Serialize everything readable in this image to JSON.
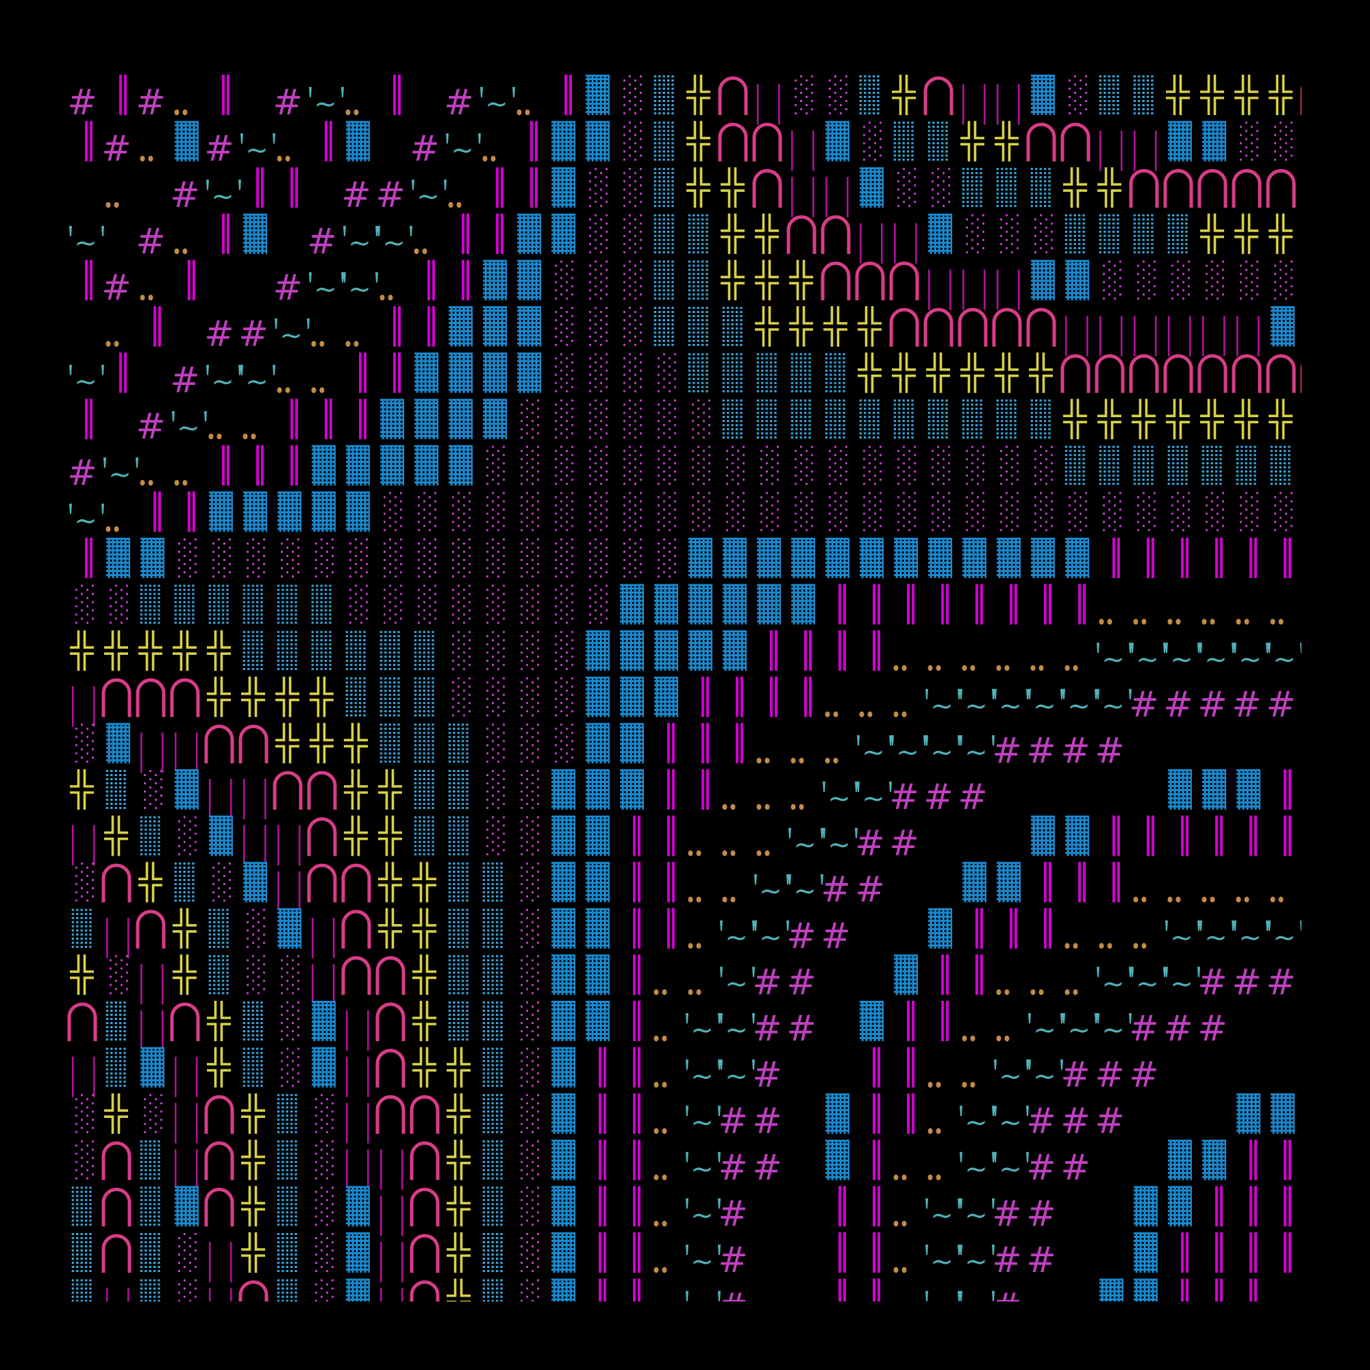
{
  "background": "#000000",
  "glyphs": {
    "H": {
      "name": "hash",
      "char": "#",
      "color": "#c040c0"
    },
    "B": {
      "name": "double-bar",
      "color": "#d000d0"
    },
    "T": {
      "name": "quote-tilde",
      "char": "~",
      "color": "#4fb2ba"
    },
    "D": {
      "name": "two-dots",
      "color": "#c48c42"
    },
    "S": {
      "name": "solid-blue-block",
      "color": "#1a8ad0"
    },
    "M": {
      "name": "magenta-dot-block",
      "color": "#c23ec8"
    },
    "C": {
      "name": "cyan-dot-block",
      "color": "#35a6dc"
    },
    "Y": {
      "name": "double-cross",
      "color": "#d8d044"
    },
    "A": {
      "name": "arch",
      "color": "#d83c88"
    },
    "L": {
      "name": "thin-double-line",
      "color": "#b0109a"
    }
  },
  "grid": [
    "HBHDB.HTDB.HTDBSMCYALMMCYALLSMCCYYYYA",
    "BHDSHTDBS.HTDBSSMCYAALSMCCYYAALLSSMMM",
    ".D.HTBB.HHTDBBSMMCYYALLSMMCCCYYAAAAAL",
    "T.HDBS.HTTDBBSSMMCCYYAALLSMMMCCCCYYYY",
    "BHDB..HTTDBBSSMMMCCYYYAAALLLSSMMMMMMC",
    ".DB.HHTDDBBSSSMMMCCCYYYYAAAAALLLLLLSS",
    "TB.HTTDDBBSSSSMMMMCCCCCYYYYYYAAAAAAAA",
    "B.HTDDBBBSSSSMMMMMMCCCCCCCCCCYYYYYYYY",
    "HTDDBBBSSSSSMMMMMMMMMMMMMMMMMCCCCCCCC",
    "TDBBSSSSSMMMMMMMMMMMMMMMMMMMMMMMMMMMM",
    "BSSMMMMMMMMMMMMMMMSSSSSSSSSSSSBBBBBB.",
    "MMCCCCCCMMMMMMMMSSSSSSBBBBBBBBDDDDDDD",
    "YYYYYCCCCCCMMMMSSSSSBBBBDDDDDDTTTTTTT",
    "LAAAYYYYCCCMMMMSSSBBBBDDDTTTTTTHHHHHH",
    "MSLLAAYYYCCCMMMSSBBBDDDTTTTHHHH......",
    "YCMSLLAAYYCCMMSSSBBDDDTTHHH.....SSSB.",
    "LYCMSLLAYYCCMMSSBBDDDTTHH...SSBBBBBBD",
    "MAYCMSLAAYYCCMSSBBDDTTHH..SSBBBDDDDDD",
    "CLAYCMSLAYYCCMSSBBDTTHH..SBBBDDDTTTTT",
    "YMLYCMMLAAYCCMSSBDDTHH..SBBDDDTTTHHHH",
    "ACLAYCMSLAYCCMSSBDTTHH.SBBDDTTTHHH...",
    "LCSLYCMSLAYYCMSBBDTTH..BBDDTTHHH.....",
    "MYMLAYCMLAAYCMSBBDTHH.SBBDTTHHH...SSS",
    "MACLAYCMLLAYCMSBBDTHH.SBDDTTHH..SSBB.",
    "CACSAYCMSLAYCMSBBDTH..BBDTTHH..SSBBB.",
    "CACMLYCMSLAYCMSBBDTH..BBDTTHH..SBBBBD",
    "CLCMLACMSLAYCMSBB.TH..BB.TTH..SSBBB.."
  ]
}
